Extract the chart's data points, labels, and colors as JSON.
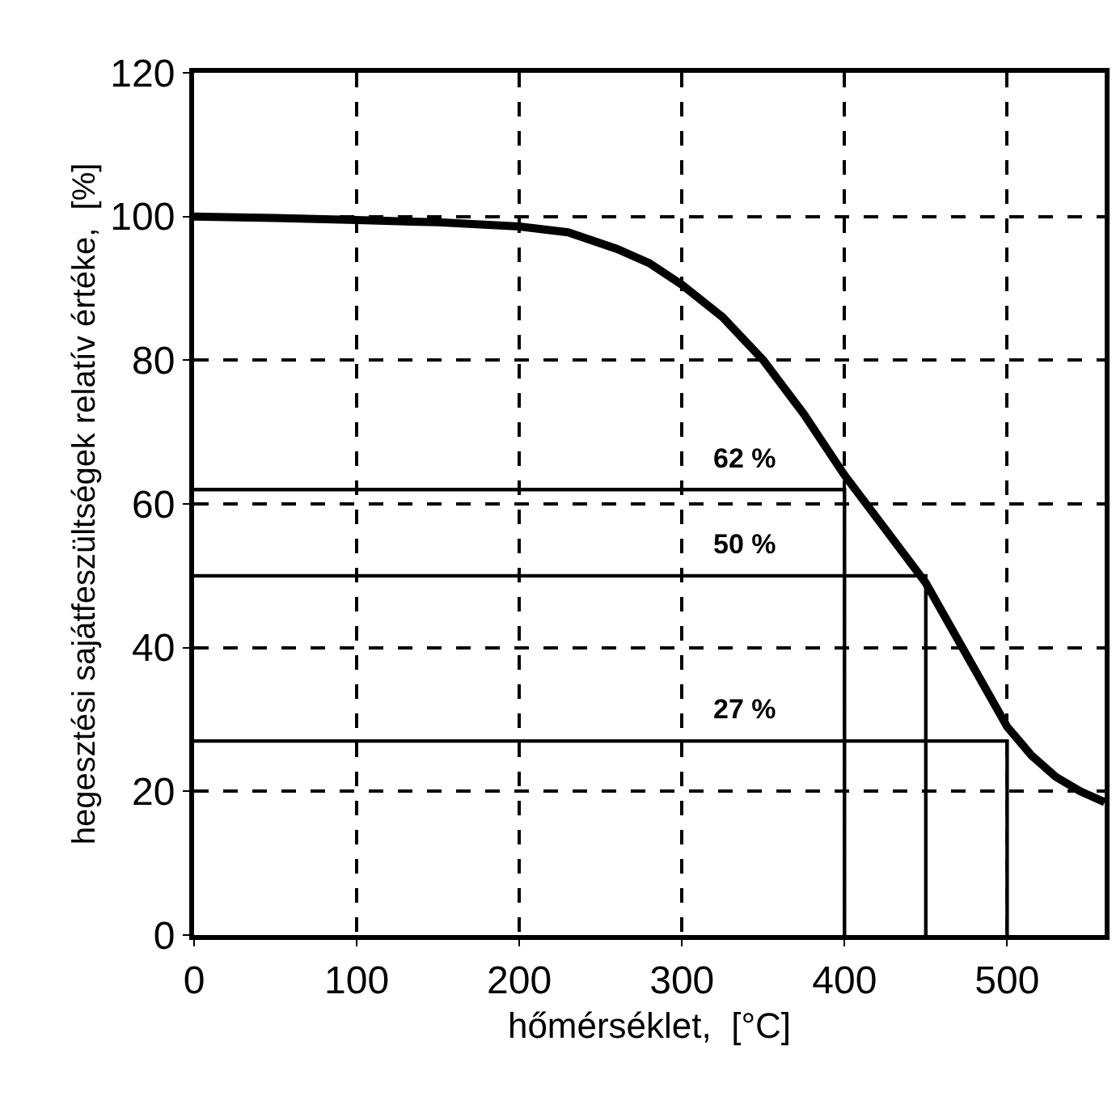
{
  "chart_data": {
    "type": "line",
    "xlabel": "hőmérséklet,  [°C]",
    "ylabel": "hegesztési sajátfeszültségek relatív értéke,  [%]",
    "xlim": [
      0,
      560
    ],
    "ylim": [
      0,
      120
    ],
    "xticks": [
      0,
      100,
      200,
      300,
      400,
      500
    ],
    "yticks": [
      0,
      20,
      40,
      60,
      80,
      100,
      120
    ],
    "grid": true,
    "marker": "none",
    "line_style": "solid",
    "series": [
      {
        "color": "#000000",
        "x": [
          0,
          50,
          100,
          150,
          200,
          230,
          260,
          280,
          300,
          325,
          350,
          375,
          400,
          425,
          450,
          475,
          500,
          515,
          530,
          545,
          560
        ],
        "values": [
          100,
          99.8,
          99.5,
          99.2,
          98.6,
          97.8,
          95.5,
          93.5,
          90.5,
          86,
          80,
          72.5,
          64,
          56.5,
          49,
          39,
          29,
          25,
          22,
          20,
          18.5
        ]
      },
      {
        "color": "#000000",
        "x": [
          0,
          400,
          400
        ],
        "values": [
          62,
          62,
          0
        ]
      },
      {
        "color": "#000000",
        "x": [
          0,
          450,
          450
        ],
        "values": [
          50,
          50,
          0
        ]
      },
      {
        "color": "#000000",
        "x": [
          0,
          500,
          500
        ],
        "values": [
          27,
          27,
          0
        ]
      }
    ],
    "annotations": [
      {
        "text": "62 %",
        "y": 62
      },
      {
        "text": "50 %",
        "y": 50
      },
      {
        "text": "27 %",
        "y": 27
      }
    ]
  }
}
